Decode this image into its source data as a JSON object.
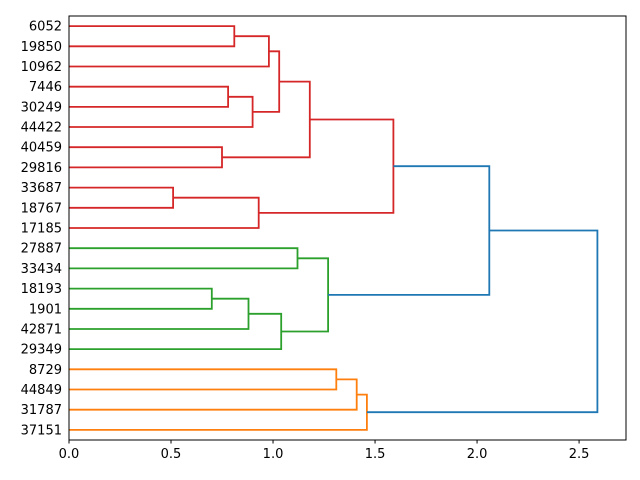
{
  "chart_data": {
    "type": "dendrogram",
    "title": "",
    "orientation": "leaves-left-root-right",
    "leaves": [
      "6052",
      "19850",
      "10962",
      "7446",
      "30249",
      "44422",
      "40459",
      "29816",
      "33687",
      "18767",
      "17185",
      "27887",
      "33434",
      "18193",
      "1901",
      "42871",
      "29349",
      "8729",
      "44849",
      "31787",
      "37151"
    ],
    "merges": [
      {
        "id": "A",
        "children": [
          "6052",
          "19850"
        ],
        "distance": 0.81,
        "color": "red"
      },
      {
        "id": "C",
        "children": [
          "7446",
          "30249"
        ],
        "distance": 0.78,
        "color": "red"
      },
      {
        "id": "F",
        "children": [
          "40459",
          "29816"
        ],
        "distance": 0.75,
        "color": "red"
      },
      {
        "id": "H",
        "children": [
          "33687",
          "18767"
        ],
        "distance": 0.51,
        "color": "red"
      },
      {
        "id": "B",
        "children": [
          "A",
          "10962"
        ],
        "distance": 0.98,
        "color": "red"
      },
      {
        "id": "D",
        "children": [
          "C",
          "44422"
        ],
        "distance": 0.9,
        "color": "red"
      },
      {
        "id": "E",
        "children": [
          "B",
          "D"
        ],
        "distance": 1.03,
        "color": "red"
      },
      {
        "id": "G",
        "children": [
          "E",
          "F"
        ],
        "distance": 1.18,
        "color": "red"
      },
      {
        "id": "I",
        "children": [
          "H",
          "17185"
        ],
        "distance": 0.93,
        "color": "red"
      },
      {
        "id": "J",
        "children": [
          "G",
          "I"
        ],
        "distance": 1.59,
        "color": "red"
      },
      {
        "id": "L",
        "children": [
          "18193",
          "1901"
        ],
        "distance": 0.7,
        "color": "green"
      },
      {
        "id": "M",
        "children": [
          "L",
          "42871"
        ],
        "distance": 0.88,
        "color": "green"
      },
      {
        "id": "N",
        "children": [
          "M",
          "29349"
        ],
        "distance": 1.04,
        "color": "green"
      },
      {
        "id": "K",
        "children": [
          "27887",
          "33434"
        ],
        "distance": 1.12,
        "color": "green"
      },
      {
        "id": "O",
        "children": [
          "K",
          "N"
        ],
        "distance": 1.27,
        "color": "green"
      },
      {
        "id": "P",
        "children": [
          "8729",
          "44849"
        ],
        "distance": 1.31,
        "color": "orange"
      },
      {
        "id": "Q",
        "children": [
          "P",
          "31787"
        ],
        "distance": 1.41,
        "color": "orange"
      },
      {
        "id": "R",
        "children": [
          "Q",
          "37151"
        ],
        "distance": 1.46,
        "color": "orange"
      },
      {
        "id": "S",
        "children": [
          "J",
          "O"
        ],
        "distance": 2.06,
        "color": "blue"
      },
      {
        "id": "T",
        "children": [
          "S",
          "R"
        ],
        "distance": 2.59,
        "color": "blue"
      }
    ],
    "clusters": [
      {
        "name": "cluster-1",
        "color_key": "red",
        "leaves": [
          "6052",
          "19850",
          "10962",
          "7446",
          "30249",
          "44422",
          "40459",
          "29816",
          "33687",
          "18767",
          "17185"
        ]
      },
      {
        "name": "cluster-2",
        "color_key": "green",
        "leaves": [
          "27887",
          "33434",
          "18193",
          "1901",
          "42871",
          "29349"
        ]
      },
      {
        "name": "cluster-3",
        "color_key": "orange",
        "leaves": [
          "8729",
          "44849",
          "31787",
          "37151"
        ]
      }
    ],
    "colors": {
      "red": "#d62728",
      "green": "#2ca02c",
      "orange": "#ff7f0e",
      "blue": "#1f77b4",
      "spine": "#000000",
      "text": "#000000"
    },
    "x_axis": {
      "tick_labels": [
        "0.0",
        "0.5",
        "1.0",
        "1.5",
        "2.0",
        "2.5"
      ],
      "tick_values": [
        0,
        0.5,
        1.0,
        1.5,
        2.0,
        2.5
      ],
      "range": [
        0,
        2.73
      ]
    },
    "xlabel": "",
    "ylabel": "",
    "grid": false,
    "legend": false
  }
}
